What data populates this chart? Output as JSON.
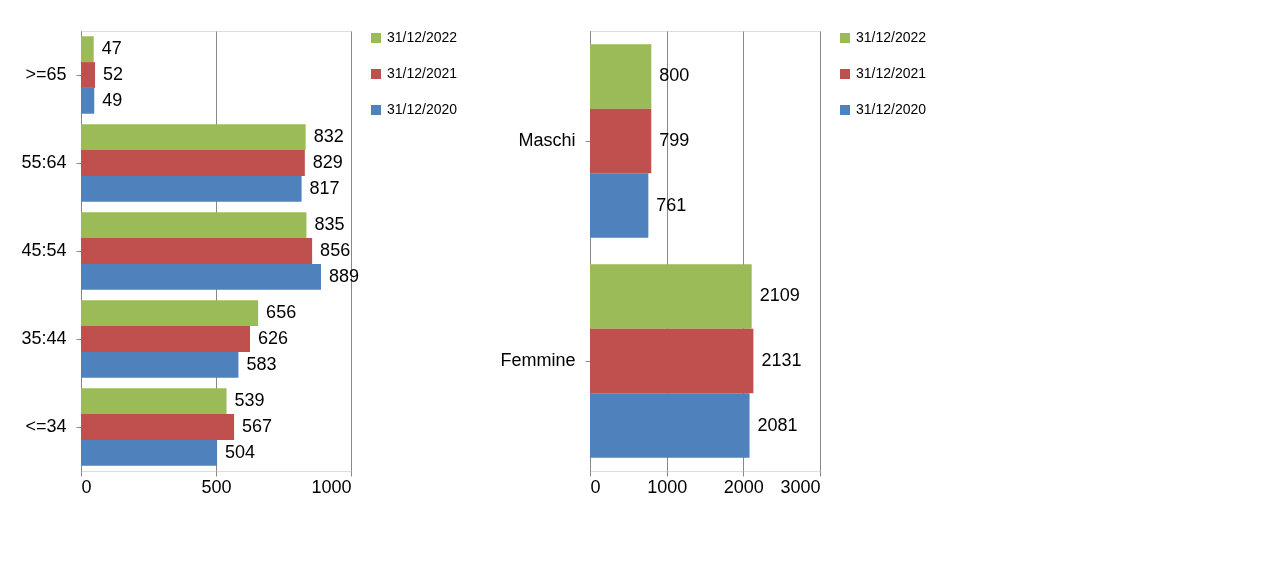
{
  "chart_data": [
    {
      "type": "bar",
      "orientation": "horizontal",
      "categories": [
        ">=65",
        "55:64",
        "45:54",
        "35:44",
        "<=34"
      ],
      "series": [
        {
          "name": "31/12/2022",
          "color": "#9bbb59",
          "values": [
            47,
            832,
            835,
            656,
            539
          ]
        },
        {
          "name": "31/12/2021",
          "color": "#c0504d",
          "values": [
            52,
            829,
            856,
            626,
            567
          ]
        },
        {
          "name": "31/12/2020",
          "color": "#4f81bd",
          "values": [
            49,
            817,
            889,
            583,
            504
          ]
        }
      ],
      "xlim": [
        0,
        1000
      ],
      "xticks": [
        0,
        500,
        1000
      ],
      "grid": "x",
      "legend": "right",
      "data_labels": true
    },
    {
      "type": "bar",
      "orientation": "horizontal",
      "categories": [
        "Maschi",
        "Femmine"
      ],
      "series": [
        {
          "name": "31/12/2022",
          "color": "#9bbb59",
          "values": [
            800,
            2109
          ]
        },
        {
          "name": "31/12/2021",
          "color": "#c0504d",
          "values": [
            799,
            2131
          ]
        },
        {
          "name": "31/12/2020",
          "color": "#4f81bd",
          "values": [
            761,
            2081
          ]
        }
      ],
      "xlim": [
        0,
        3000
      ],
      "xticks": [
        0,
        1000,
        2000,
        3000
      ],
      "grid": "x",
      "legend": "right",
      "data_labels": true
    }
  ]
}
